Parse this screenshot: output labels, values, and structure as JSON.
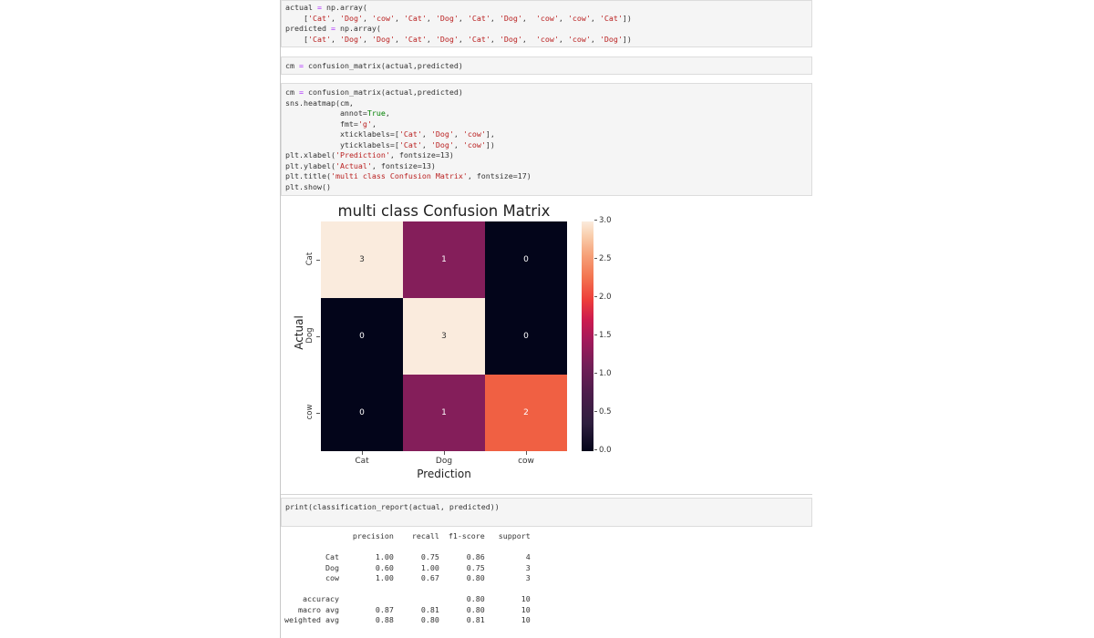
{
  "cells": {
    "cell1": {
      "lines": [
        "actual = np.array(",
        "    ['Cat', 'Dog', 'cow', 'Cat', 'Dog', 'Cat', 'Dog',  'cow', 'cow', 'Cat'])",
        "predicted = np.array(",
        "    ['Cat', 'Dog', 'Dog', 'Cat', 'Dog', 'Cat', 'Dog',  'cow', 'cow', 'Dog'])"
      ]
    },
    "cell2": {
      "lines": [
        "cm = confusion_matrix(actual,predicted)"
      ]
    },
    "cell3": {
      "lines": [
        "cm = confusion_matrix(actual,predicted)",
        "sns.heatmap(cm,",
        "            annot=True,",
        "            fmt='g',",
        "            xticklabels=['Cat', 'Dog', 'cow'],",
        "            yticklabels=['Cat', 'Dog', 'cow'])",
        "plt.xlabel('Prediction', fontsize=13)",
        "plt.ylabel('Actual', fontsize=13)",
        "plt.title('multi class Confusion Matrix', fontsize=17)",
        "plt.show()"
      ]
    },
    "cell4": {
      "lines": [
        "print(classification_report(actual, predicted))"
      ]
    }
  },
  "chart_data": {
    "type": "heatmap",
    "title": "multi class Confusion Matrix",
    "xlabel": "Prediction",
    "ylabel": "Actual",
    "x_categories": [
      "Cat",
      "Dog",
      "cow"
    ],
    "y_categories": [
      "Cat",
      "Dog",
      "cow"
    ],
    "values": [
      [
        3,
        1,
        0
      ],
      [
        0,
        3,
        0
      ],
      [
        0,
        1,
        2
      ]
    ],
    "colorbar": {
      "min": 0.0,
      "max": 3.0,
      "ticks": [
        "3.0",
        "2.5",
        "2.0",
        "1.5",
        "1.0",
        "0.5",
        "0.0"
      ]
    },
    "cell_colors": {
      "0": "#03051a",
      "1": "#841e5a",
      "2": "#f06043",
      "3": "#faebdd"
    },
    "text_colors": {
      "0": "#ffffff",
      "1": "#ffffff",
      "2": "#ffffff",
      "3": "#333333"
    }
  },
  "report": {
    "header": [
      "precision",
      "recall",
      "f1-score",
      "support"
    ],
    "rows": [
      {
        "label": "Cat",
        "precision": "1.00",
        "recall": "0.75",
        "f1": "0.86",
        "support": "4"
      },
      {
        "label": "Dog",
        "precision": "0.60",
        "recall": "1.00",
        "f1": "0.75",
        "support": "3"
      },
      {
        "label": "cow",
        "precision": "1.00",
        "recall": "0.67",
        "f1": "0.80",
        "support": "3"
      }
    ],
    "summary": [
      {
        "label": "accuracy",
        "precision": "",
        "recall": "",
        "f1": "0.80",
        "support": "10"
      },
      {
        "label": "macro avg",
        "precision": "0.87",
        "recall": "0.81",
        "f1": "0.80",
        "support": "10"
      },
      {
        "label": "weighted avg",
        "precision": "0.88",
        "recall": "0.80",
        "f1": "0.81",
        "support": "10"
      }
    ]
  }
}
